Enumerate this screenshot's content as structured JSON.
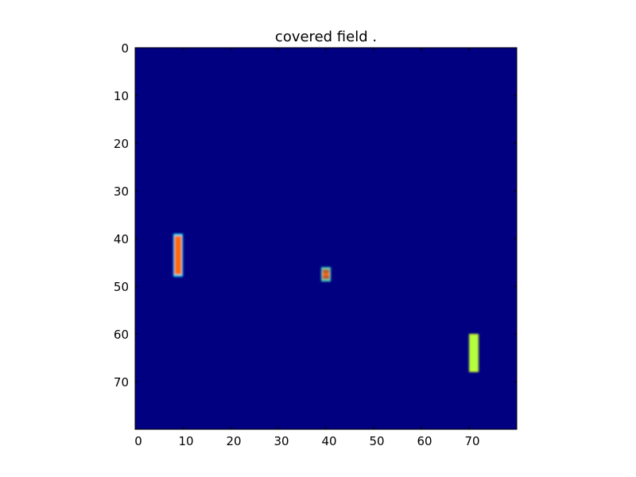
{
  "chart_data": {
    "type": "heatmap",
    "title": "covered field .",
    "xlabel": "",
    "ylabel": "",
    "xlim": [
      0,
      80
    ],
    "ylim": [
      80,
      0
    ],
    "x_ticks": [
      0,
      10,
      20,
      30,
      40,
      50,
      60,
      70
    ],
    "y_ticks": [
      0,
      10,
      20,
      30,
      40,
      50,
      60,
      70
    ],
    "grid": false,
    "colormap": "jet",
    "background_value": 0.0,
    "background_color": "#000080",
    "patches": [
      {
        "name": "left-bar",
        "x_range": [
          8,
          10
        ],
        "y_range": [
          39,
          48
        ],
        "value": 0.85,
        "edge_color": "#00e5ff",
        "fill_color": "#ff6a00"
      },
      {
        "name": "middle-bar",
        "x_range": [
          39,
          41
        ],
        "y_range": [
          46,
          49
        ],
        "value": 0.8,
        "edge_color": "#3fe0c0",
        "fill_color": "#b85a2a",
        "center_color": "#ff6a00"
      },
      {
        "name": "right-bar",
        "x_range": [
          70,
          72
        ],
        "y_range": [
          60,
          68
        ],
        "value": 0.65,
        "edge_color": "#c8ff30",
        "fill_color": "#b4ff3c"
      }
    ]
  }
}
